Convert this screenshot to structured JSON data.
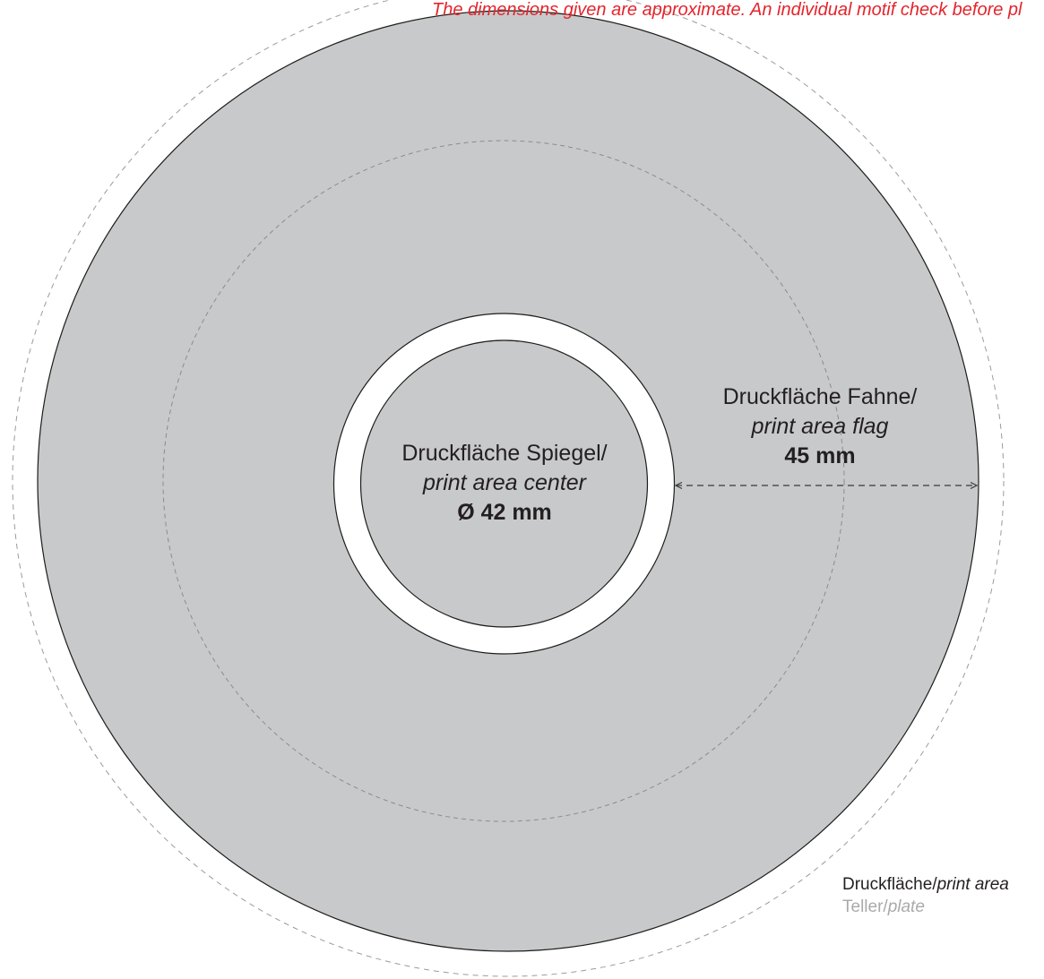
{
  "notice": "The dimensions given are approximate. An individual motif check before pl",
  "flag_area": {
    "label_de": "Druckfläche Fahne/",
    "label_en": "print area flag",
    "dimension": "45 mm"
  },
  "center_area": {
    "label_de": "Druckfläche Spiegel/",
    "label_en": "print area center",
    "dimension": "Ø 42 mm"
  },
  "legend": {
    "print_area": {
      "label_de": "Druckfläche/",
      "label_en": "print area"
    },
    "plate": {
      "label_de": "Teller/",
      "label_en": "plate"
    }
  },
  "colors": {
    "print_area_fill": "#c8c9cb",
    "notice_text": "#e4252c",
    "plate_legend_text": "#aaaaaa",
    "outline": "#1d1d1b"
  }
}
